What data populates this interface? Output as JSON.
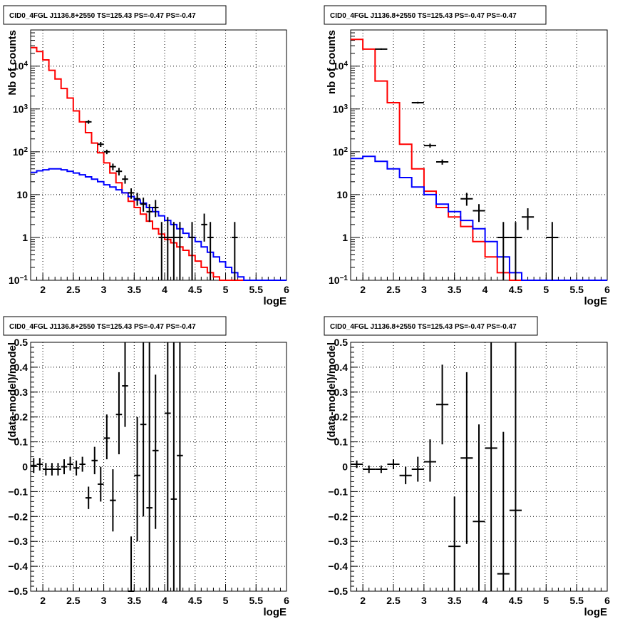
{
  "chart_data": [
    {
      "type": "line",
      "title": "CID0_4FGL J1136.8+2550 TS=125.43 PS=-0.47 PS=-0.47",
      "xlabel": "logE",
      "ylabel": "Nb of counts",
      "xlim": [
        1.8,
        6.0
      ],
      "ylim": [
        0.1,
        70000
      ],
      "yscale": "log",
      "grid": true,
      "x_ticks": [
        "2",
        "2.5",
        "3",
        "3.5",
        "4",
        "4.5",
        "5",
        "5.5",
        "6"
      ],
      "y_ticks": [
        "10⁻¹",
        "1",
        "10",
        "10²",
        "10³",
        "10⁴"
      ],
      "x_edges_start": 1.8,
      "bin_width": 0.1,
      "series": [
        {
          "color": "#ff0000",
          "values": [
            27000,
            22000,
            14000,
            8000,
            5000,
            3000,
            1800,
            900,
            500,
            280,
            160,
            95,
            55,
            32,
            19,
            11,
            7,
            5,
            3.5,
            2.4,
            1.6,
            1.2,
            0.9,
            0.75,
            0.6,
            0.5,
            0.38,
            0.28,
            0.2,
            0.15,
            0.12,
            0.1,
            0.1,
            0.1,
            0.1,
            0.1,
            0.1,
            0.1,
            0.1,
            0.1,
            0.1,
            0.1
          ]
        },
        {
          "color": "#0000ff",
          "values": [
            33,
            36,
            38,
            40,
            40,
            38,
            35,
            32,
            29,
            26,
            23,
            20,
            17,
            15,
            13,
            11,
            9,
            7.5,
            6.3,
            5,
            4,
            3.2,
            2.5,
            2,
            1.6,
            1.25,
            1,
            0.8,
            0.6,
            0.45,
            0.35,
            0.27,
            0.2,
            0.15,
            0.12,
            0.1,
            0.1,
            0.1,
            0.1,
            0.1,
            0.1,
            0.1
          ]
        }
      ],
      "points": [
        {
          "x": 2.75,
          "y": 500,
          "lo": 450,
          "hi": 550,
          "hw": 0.05
        },
        {
          "x": 2.95,
          "y": 150,
          "lo": 130,
          "hi": 170,
          "hw": 0.05
        },
        {
          "x": 3.05,
          "y": 100,
          "lo": 88,
          "hi": 112,
          "hw": 0.05
        },
        {
          "x": 3.15,
          "y": 45,
          "lo": 37,
          "hi": 53,
          "hw": 0.05
        },
        {
          "x": 3.25,
          "y": 35,
          "lo": 28,
          "hi": 42,
          "hw": 0.05
        },
        {
          "x": 3.35,
          "y": 23,
          "lo": 18,
          "hi": 28,
          "hw": 0.05
        },
        {
          "x": 3.45,
          "y": 11,
          "lo": 8,
          "hi": 14,
          "hw": 0.05
        },
        {
          "x": 3.55,
          "y": 8,
          "lo": 5.5,
          "hi": 11,
          "hw": 0.05
        },
        {
          "x": 3.65,
          "y": 6,
          "lo": 4,
          "hi": 8.5,
          "hw": 0.05
        },
        {
          "x": 3.75,
          "y": 4,
          "lo": 2.3,
          "hi": 6,
          "hw": 0.05
        },
        {
          "x": 3.85,
          "y": 5,
          "lo": 3,
          "hi": 7.5,
          "hw": 0.05
        },
        {
          "x": 3.95,
          "y": 1,
          "lo": 0.1,
          "hi": 2.3,
          "hw": 0.05
        },
        {
          "x": 4.05,
          "y": 1,
          "lo": 0.1,
          "hi": 3,
          "hw": 0.05
        },
        {
          "x": 4.15,
          "y": 1,
          "lo": 0.1,
          "hi": 2.3,
          "hw": 0.05
        },
        {
          "x": 4.25,
          "y": 1,
          "lo": 0.1,
          "hi": 2.3,
          "hw": 0.05
        },
        {
          "x": 4.45,
          "y": 1,
          "lo": 0.1,
          "hi": 2.3,
          "hw": 0.05
        },
        {
          "x": 4.65,
          "y": 2,
          "lo": 0.8,
          "hi": 3.6,
          "hw": 0.05
        },
        {
          "x": 4.75,
          "y": 1,
          "lo": 0.1,
          "hi": 2.3,
          "hw": 0.05
        },
        {
          "x": 5.15,
          "y": 1,
          "lo": 0.1,
          "hi": 2.3,
          "hw": 0.05
        }
      ]
    },
    {
      "type": "line",
      "title": "CID0_4FGL J1136.8+2550 TS=125.43 PS=-0.47 PS=-0.47",
      "xlabel": "logE",
      "ylabel": "nb of counts",
      "xlim": [
        1.8,
        6.0
      ],
      "ylim": [
        0.1,
        70000
      ],
      "yscale": "log",
      "grid": true,
      "x_ticks": [
        "2",
        "2.5",
        "3",
        "3.5",
        "4",
        "4.5",
        "5",
        "5.5",
        "6"
      ],
      "y_ticks": [
        "10⁻¹",
        "1",
        "10",
        "10²",
        "10³",
        "10⁴"
      ],
      "x_edges_start": 1.8,
      "bin_width": 0.2,
      "series": [
        {
          "color": "#ff0000",
          "values": [
            42000,
            25000,
            4500,
            1400,
            150,
            40,
            12,
            5,
            3,
            1.8,
            0.8,
            0.35,
            0.15,
            0.1,
            0.1,
            0.1,
            0.1,
            0.1,
            0.1,
            0.1,
            0.1
          ]
        },
        {
          "color": "#0000ff",
          "values": [
            70,
            78,
            60,
            40,
            25,
            15,
            10,
            6,
            4,
            2.5,
            1.6,
            0.8,
            0.35,
            0.15,
            0.1,
            0.1,
            0.1,
            0.1,
            0.1,
            0.1,
            0.1
          ]
        }
      ],
      "points": [
        {
          "x": 2.3,
          "y": 25000,
          "lo": 24000,
          "hi": 26000,
          "hw": 0.1
        },
        {
          "x": 2.9,
          "y": 1400,
          "lo": 1330,
          "hi": 1470,
          "hw": 0.1
        },
        {
          "x": 3.1,
          "y": 140,
          "lo": 125,
          "hi": 155,
          "hw": 0.1
        },
        {
          "x": 3.3,
          "y": 58,
          "lo": 50,
          "hi": 66,
          "hw": 0.1
        },
        {
          "x": 3.7,
          "y": 8,
          "lo": 5.5,
          "hi": 11,
          "hw": 0.1
        },
        {
          "x": 3.9,
          "y": 4.2,
          "lo": 2.3,
          "hi": 6,
          "hw": 0.1
        },
        {
          "x": 4.3,
          "y": 1,
          "lo": 0.1,
          "hi": 2.3,
          "hw": 0.1
        },
        {
          "x": 4.5,
          "y": 1,
          "lo": 0.1,
          "hi": 2.3,
          "hw": 0.1
        },
        {
          "x": 4.7,
          "y": 3,
          "lo": 1.5,
          "hi": 4.8,
          "hw": 0.1
        },
        {
          "x": 5.1,
          "y": 1,
          "lo": 0.1,
          "hi": 2.3,
          "hw": 0.1
        }
      ]
    },
    {
      "type": "scatter",
      "title": "CID0_4FGL J1136.8+2550 TS=125.43 PS=-0.47 PS=-0.47",
      "xlabel": "logE",
      "ylabel": "(data-model)/model",
      "xlim": [
        1.8,
        6.0
      ],
      "ylim": [
        -0.5,
        0.5
      ],
      "grid": true,
      "x_ticks": [
        "2",
        "2.5",
        "3",
        "3.5",
        "4",
        "4.5",
        "5",
        "5.5",
        "6"
      ],
      "y_ticks": [
        "−0.5",
        "−0.4",
        "−0.3",
        "−0.2",
        "−0.1",
        "0",
        "0.1",
        "0.2",
        "0.3",
        "0.4",
        "0.5"
      ],
      "points": [
        {
          "x": 1.85,
          "y": 0.005,
          "lo": -0.025,
          "hi": 0.035,
          "hw": 0.05
        },
        {
          "x": 1.95,
          "y": 0.01,
          "lo": -0.015,
          "hi": 0.035,
          "hw": 0.05
        },
        {
          "x": 2.05,
          "y": -0.01,
          "lo": -0.035,
          "hi": 0.015,
          "hw": 0.05
        },
        {
          "x": 2.15,
          "y": -0.01,
          "lo": -0.035,
          "hi": 0.015,
          "hw": 0.05
        },
        {
          "x": 2.25,
          "y": -0.01,
          "lo": -0.035,
          "hi": 0.015,
          "hw": 0.05
        },
        {
          "x": 2.35,
          "y": 0,
          "lo": -0.03,
          "hi": 0.03,
          "hw": 0.05
        },
        {
          "x": 2.45,
          "y": 0.01,
          "lo": -0.015,
          "hi": 0.04,
          "hw": 0.05
        },
        {
          "x": 2.55,
          "y": -0.005,
          "lo": -0.035,
          "hi": 0.025,
          "hw": 0.05
        },
        {
          "x": 2.65,
          "y": 0.01,
          "lo": -0.02,
          "hi": 0.04,
          "hw": 0.05
        },
        {
          "x": 2.75,
          "y": -0.125,
          "lo": -0.17,
          "hi": -0.08,
          "hw": 0.05
        },
        {
          "x": 2.85,
          "y": 0.025,
          "lo": -0.03,
          "hi": 0.08,
          "hw": 0.05
        },
        {
          "x": 2.95,
          "y": -0.07,
          "lo": -0.14,
          "hi": 0.0,
          "hw": 0.05
        },
        {
          "x": 3.05,
          "y": 0.115,
          "lo": 0.03,
          "hi": 0.21,
          "hw": 0.05
        },
        {
          "x": 3.15,
          "y": -0.135,
          "lo": -0.26,
          "hi": -0.01,
          "hw": 0.05
        },
        {
          "x": 3.25,
          "y": 0.21,
          "lo": 0.05,
          "hi": 0.38,
          "hw": 0.05
        },
        {
          "x": 3.35,
          "y": 0.325,
          "lo": 0.16,
          "hi": 0.5,
          "hw": 0.05
        },
        {
          "x": 3.45,
          "y": -0.5,
          "lo": -0.5,
          "hi": -0.28,
          "hw": 0.05
        },
        {
          "x": 3.55,
          "y": -0.035,
          "lo": -0.3,
          "hi": 0.2,
          "hw": 0.05
        },
        {
          "x": 3.65,
          "y": 0.17,
          "lo": -0.2,
          "hi": 0.5,
          "hw": 0.05
        },
        {
          "x": 3.75,
          "y": -0.165,
          "lo": -0.5,
          "hi": 0.5,
          "hw": 0.05
        },
        {
          "x": 3.85,
          "y": 0.065,
          "lo": -0.25,
          "hi": 0.37,
          "hw": 0.05
        },
        {
          "x": 4.05,
          "y": 0.215,
          "lo": -0.5,
          "hi": 0.5,
          "hw": 0.05
        },
        {
          "x": 4.15,
          "y": -0.13,
          "lo": -0.5,
          "hi": 0.5,
          "hw": 0.05
        },
        {
          "x": 4.25,
          "y": 0.045,
          "lo": -0.5,
          "hi": 0.5,
          "hw": 0.05
        }
      ]
    },
    {
      "type": "scatter",
      "title": "CID0_4FGL J1136.8+2550 TS=125.43 PS=-0.47 PS=-0.47",
      "xlabel": "logE",
      "ylabel": "(data-model)/model",
      "xlim": [
        1.8,
        6.0
      ],
      "ylim": [
        -0.5,
        0.5
      ],
      "grid": true,
      "x_ticks": [
        "2",
        "2.5",
        "3",
        "3.5",
        "4",
        "4.5",
        "5",
        "5.5",
        "6"
      ],
      "y_ticks": [
        "−0.5",
        "−0.4",
        "−0.3",
        "−0.2",
        "−0.1",
        "0",
        "0.1",
        "0.2",
        "0.3",
        "0.4",
        "0.5"
      ],
      "points": [
        {
          "x": 1.9,
          "y": 0.01,
          "lo": -0.005,
          "hi": 0.025,
          "hw": 0.1
        },
        {
          "x": 2.1,
          "y": -0.01,
          "lo": -0.025,
          "hi": 0.005,
          "hw": 0.1
        },
        {
          "x": 2.3,
          "y": -0.01,
          "lo": -0.025,
          "hi": 0.005,
          "hw": 0.1
        },
        {
          "x": 2.5,
          "y": 0.01,
          "lo": -0.01,
          "hi": 0.03,
          "hw": 0.1
        },
        {
          "x": 2.7,
          "y": -0.035,
          "lo": -0.07,
          "hi": 0.0,
          "hw": 0.1
        },
        {
          "x": 2.9,
          "y": -0.01,
          "lo": -0.06,
          "hi": 0.04,
          "hw": 0.1
        },
        {
          "x": 3.1,
          "y": 0.02,
          "lo": -0.06,
          "hi": 0.11,
          "hw": 0.1
        },
        {
          "x": 3.3,
          "y": 0.25,
          "lo": 0.09,
          "hi": 0.41,
          "hw": 0.1
        },
        {
          "x": 3.5,
          "y": -0.32,
          "lo": -0.5,
          "hi": -0.12,
          "hw": 0.1
        },
        {
          "x": 3.7,
          "y": 0.035,
          "lo": -0.31,
          "hi": 0.38,
          "hw": 0.1
        },
        {
          "x": 3.9,
          "y": -0.22,
          "lo": -0.5,
          "hi": 0.17,
          "hw": 0.1
        },
        {
          "x": 4.1,
          "y": 0.075,
          "lo": -0.5,
          "hi": 0.5,
          "hw": 0.1
        },
        {
          "x": 4.3,
          "y": -0.43,
          "lo": -0.5,
          "hi": 0.14,
          "hw": 0.1
        },
        {
          "x": 4.5,
          "y": -0.175,
          "lo": -0.5,
          "hi": 0.5,
          "hw": 0.1
        }
      ]
    }
  ]
}
